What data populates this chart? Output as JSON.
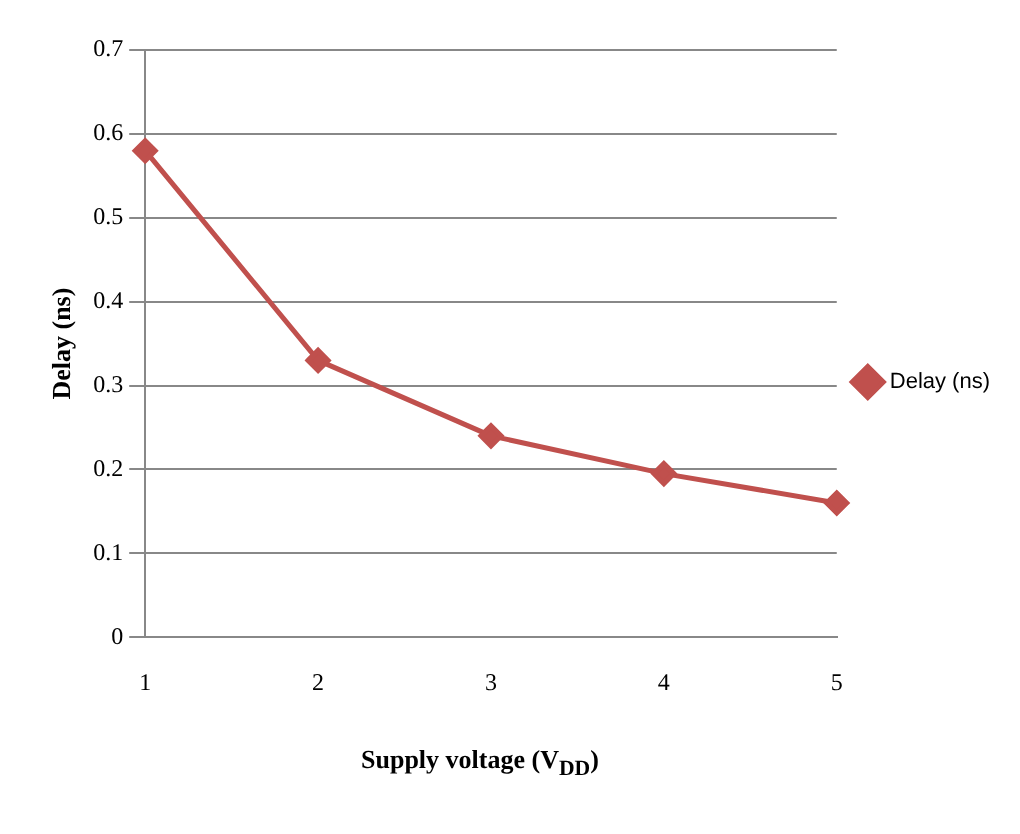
{
  "chart_data": {
    "type": "line",
    "xlabel": "Supply voltage (V$_{DD}$)",
    "ylabel": "Delay (ns)",
    "categories": [
      "1",
      "2",
      "3",
      "4",
      "5"
    ],
    "series": [
      {
        "name": "Delay (ns)",
        "color": "#c0504d",
        "values": [
          0.58,
          0.33,
          0.24,
          0.195,
          0.16
        ]
      }
    ],
    "ylim": [
      0,
      0.7
    ],
    "yticks": [
      0,
      0.1,
      0.2,
      0.3,
      0.4,
      0.5,
      0.6,
      0.7
    ],
    "grid": "y",
    "legend": "right",
    "marker": "diamond",
    "line_style": "solid"
  }
}
